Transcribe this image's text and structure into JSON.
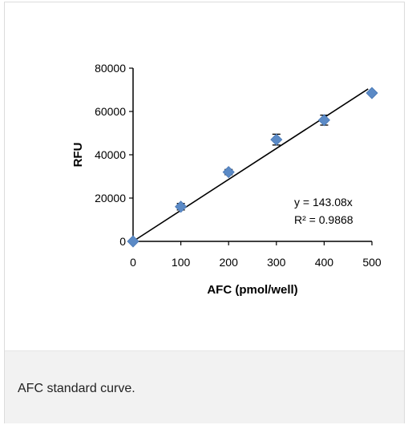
{
  "caption": "AFC standard curve.",
  "chart_data": {
    "type": "scatter",
    "title": "",
    "xlabel": "AFC (pmol/well)",
    "ylabel": "RFU",
    "xlim": [
      0,
      500
    ],
    "ylim": [
      0,
      80000
    ],
    "x_ticks": [
      "0",
      "100",
      "200",
      "300",
      "400",
      "500"
    ],
    "y_ticks": [
      "0",
      "20000",
      "40000",
      "60000",
      "80000"
    ],
    "grid": false,
    "legend": "none",
    "marker_color": "#5b8ac6",
    "line_color": "#000000",
    "series": [
      {
        "x": [
          0,
          100,
          200,
          300,
          400,
          500
        ],
        "y": [
          0,
          16000,
          32000,
          47000,
          56000,
          68500
        ],
        "error": [
          0,
          1500,
          1200,
          2500,
          2300,
          0
        ]
      }
    ],
    "trendline": {
      "slope": 143.08,
      "intercept": 0
    },
    "annotations": [
      "y = 143.08x",
      "R² = 0.9868"
    ]
  }
}
